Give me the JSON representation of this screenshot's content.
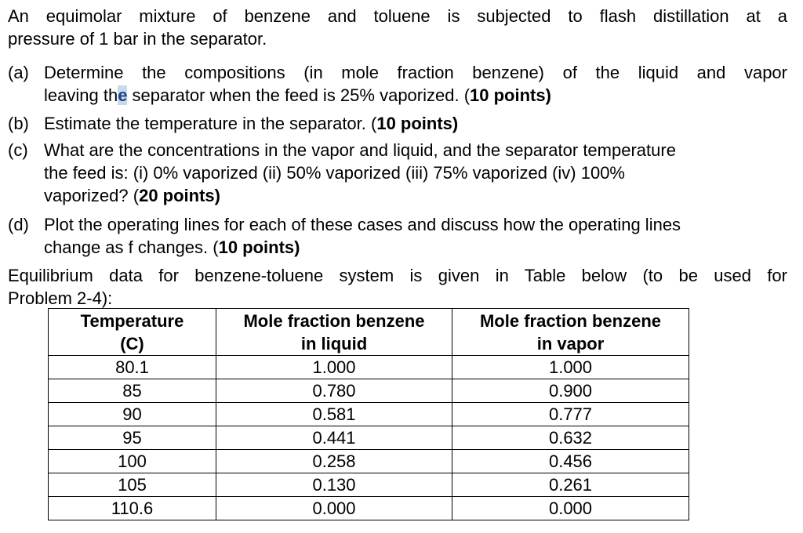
{
  "intro": {
    "line1": "An equimolar mixture of benzene and toluene is subjected to flash distillation at a",
    "line2": "pressure of 1 bar in the separator."
  },
  "questions": [
    {
      "label": "(a)",
      "lines": [
        "Determine the compositions (in mole fraction benzene) of the liquid and vapor"
      ],
      "line2_prefix": "leaving th",
      "line2_highlight": "e",
      "line2_suffix": " separator when the feed is 25% vaporized. (",
      "points": "10 points",
      "close": ")"
    },
    {
      "label": "(b)",
      "text": "Estimate the temperature in the separator. (",
      "points": "10 points",
      "close": ")"
    },
    {
      "label": "(c)",
      "line1": "What are the concentrations in the vapor and liquid, and the separator temperature",
      "line2": "the feed is: (i) 0% vaporized (ii) 50% vaporized (iii) 75% vaporized (iv) 100%",
      "line3_prefix": "vaporized? (",
      "points": "20 points",
      "close": ")"
    },
    {
      "label": "(d)",
      "line1": "Plot the operating lines for each of these cases and discuss how the operating lines",
      "line2_prefix": "change as f changes. (",
      "points": "10 points",
      "close": ")"
    }
  ],
  "equilibrium": {
    "line1": "Equilibrium data for benzene-toluene system is given in Table below (to be used for",
    "line2": "Problem 2-4):"
  },
  "table": {
    "headers": [
      [
        "Temperature",
        "(C)"
      ],
      [
        "Mole fraction benzene",
        "in liquid"
      ],
      [
        "Mole fraction benzene",
        "in vapor"
      ]
    ],
    "rows": [
      [
        "80.1",
        "1.000",
        "1.000"
      ],
      [
        "85",
        "0.780",
        "0.900"
      ],
      [
        "90",
        "0.581",
        "0.777"
      ],
      [
        "95",
        "0.441",
        "0.632"
      ],
      [
        "100",
        "0.258",
        "0.456"
      ],
      [
        "105",
        "0.130",
        "0.261"
      ],
      [
        "110.6",
        "0.000",
        "0.000"
      ]
    ]
  }
}
